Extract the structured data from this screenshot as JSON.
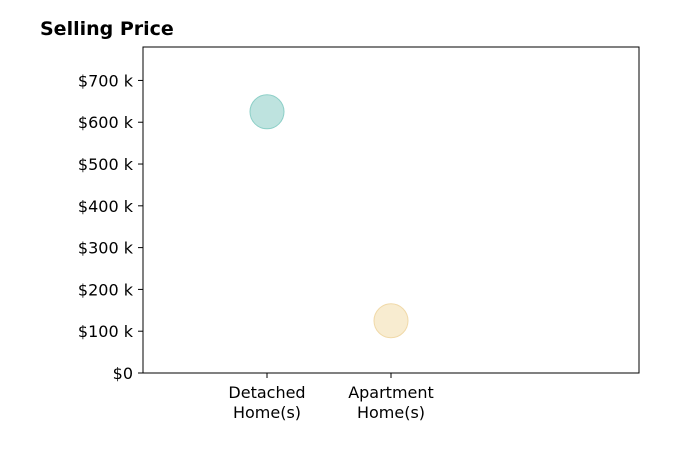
{
  "chart_data": {
    "type": "scatter",
    "title": "Selling Price",
    "categories": [
      "Detached Home(s)",
      "Apartment Home(s)"
    ],
    "category_lines": [
      [
        "Detached",
        "Home(s)"
      ],
      [
        "Apartment",
        "Home(s)"
      ]
    ],
    "values": [
      625,
      125
    ],
    "ylim": [
      0,
      780
    ],
    "yticks": [
      0,
      100,
      200,
      300,
      400,
      500,
      600,
      700
    ],
    "ytick_labels": [
      "$0",
      "$100 k",
      "$200 k",
      "$300 k",
      "$400 k",
      "$500 k",
      "$600 k",
      "$700 k"
    ],
    "xlabel": "",
    "ylabel": "",
    "grid": false,
    "colors": {
      "points": [
        "#a8dad4",
        "#f6e5c0"
      ],
      "point_strokes": [
        "#8ccfc7",
        "#f0d9a8"
      ],
      "axis": "#000000"
    }
  }
}
